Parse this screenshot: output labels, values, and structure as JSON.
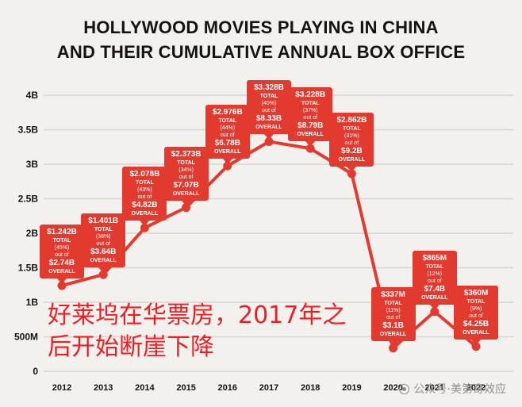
{
  "title": {
    "line1": "HOLLYWOOD MOVIES PLAYING IN CHINA",
    "line2": "AND THEIR CUMULATIVE ANNUAL BOX OFFICE"
  },
  "annotation": {
    "text_line1": "好莱坞在华票房，2017年之",
    "text_line2": "后开始断崖下降"
  },
  "watermark": {
    "text": "公众号·美第奇效应"
  },
  "colors": {
    "background": "#f2f1ee",
    "accent_red": "#e23a2e",
    "annotation_red": "#f01d23",
    "grid": "#d8d6d2",
    "text_dark": "#131313",
    "watermark_gray": "#8f8f8f"
  },
  "chart_data": {
    "type": "line",
    "title": "Hollywood movies playing in China and their cumulative annual box office",
    "xlabel": "",
    "ylabel": "",
    "grid": true,
    "ylim": [
      0,
      4
    ],
    "x": [
      "2012",
      "2013",
      "2014",
      "2015",
      "2016",
      "2017",
      "2018",
      "2019",
      "2020",
      "2021",
      "2022"
    ],
    "series": [
      {
        "name": "Hollywood box office in China (USD, billions)",
        "values_billion_usd": [
          1.242,
          1.401,
          2.078,
          2.373,
          2.976,
          3.328,
          3.228,
          2.862,
          0.337,
          0.865,
          0.36
        ]
      }
    ],
    "y_ticks": [
      {
        "label": "4B",
        "value": 4
      },
      {
        "label": "3.5B",
        "value": 3.5
      },
      {
        "label": "3B",
        "value": 3
      },
      {
        "label": "2.5B",
        "value": 2.5
      },
      {
        "label": "2B",
        "value": 2
      },
      {
        "label": "1.5B",
        "value": 1.5
      },
      {
        "label": "1B",
        "value": 1
      },
      {
        "label": "500M",
        "value": 0.5
      },
      {
        "label": "0",
        "value": 0
      }
    ],
    "callout_labels": {
      "total": "TOTAL",
      "out_of": "out of",
      "overall": "OVERALL"
    },
    "callouts": [
      {
        "year": "2012",
        "total": "$1.242B",
        "percent": "(45%)",
        "overall": "$2.74B"
      },
      {
        "year": "2013",
        "total": "$1.401B",
        "percent": "(38%)",
        "overall": "$3.64B"
      },
      {
        "year": "2014",
        "total": "$2.078B",
        "percent": "(43%)",
        "overall": "$4.82B"
      },
      {
        "year": "2015",
        "total": "$2.373B",
        "percent": "(34%)",
        "overall": "$7.07B"
      },
      {
        "year": "2016",
        "total": "$2.976B",
        "percent": "(44%)",
        "overall": "$6.78B"
      },
      {
        "year": "2017",
        "total": "$3.328B",
        "percent": "(40%)",
        "overall": "$8.33B"
      },
      {
        "year": "2018",
        "total": "$3.228B",
        "percent": "(37%)",
        "overall": "$8.79B"
      },
      {
        "year": "2019",
        "total": "$2.862B",
        "percent": "(31%)",
        "overall": "$9.2B"
      },
      {
        "year": "2020",
        "total": "$337M",
        "percent": "(11%)",
        "overall": "$3.1B"
      },
      {
        "year": "2021",
        "total": "$865M",
        "percent": "(12%)",
        "overall": "$7.4B"
      },
      {
        "year": "2022",
        "total": "$360M",
        "percent": "(9%)",
        "overall": "$4.25B"
      }
    ]
  }
}
